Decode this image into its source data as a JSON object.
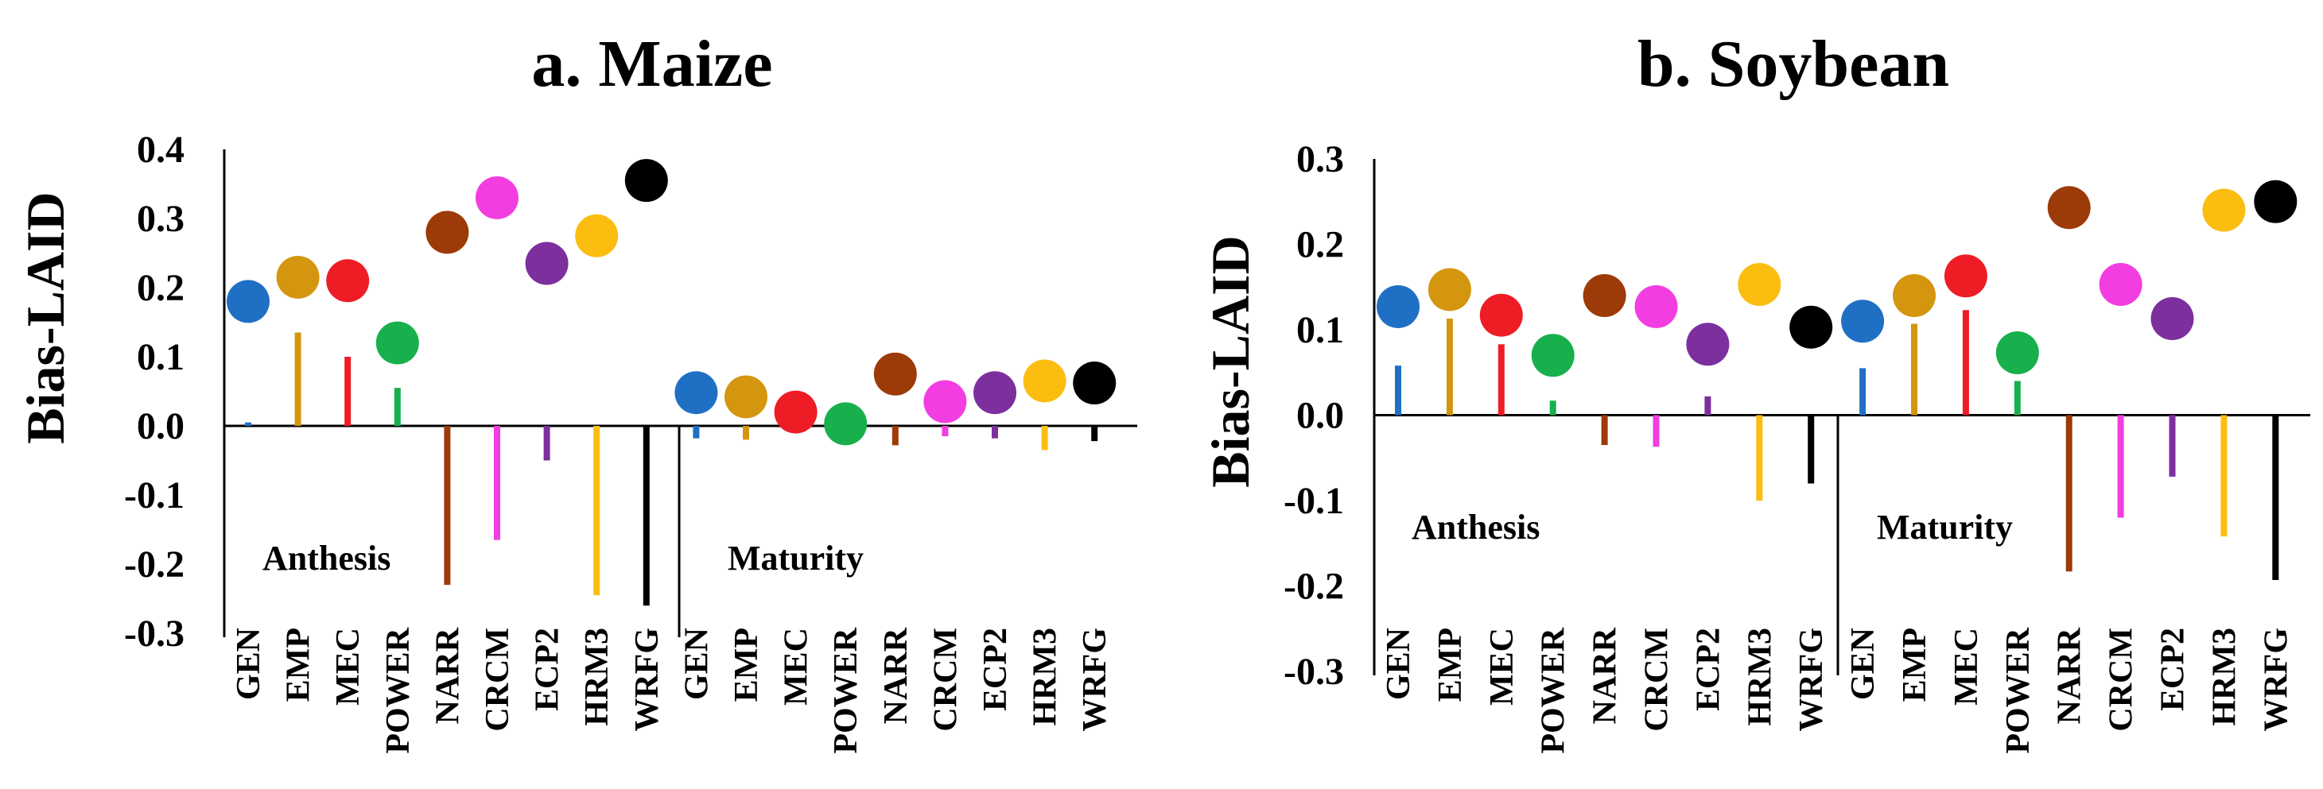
{
  "colors": {
    "GEN": "#1f6fc5",
    "EMP": "#d4960f",
    "MEC": "#ee1c25",
    "POWER": "#18b04c",
    "NARR": "#9c3a08",
    "CRCM": "#f23ee0",
    "ECP2": "#7d2f9e",
    "HRM3": "#fbbd10",
    "WRFG": "#000000"
  },
  "chart_data": [
    {
      "type": "scatter",
      "title": "a. Maize",
      "ylabel": "Bias-LAID",
      "xlabel": "",
      "ylim": [
        -0.3,
        0.4
      ],
      "ytick_labels": [
        "0.4",
        "0.3",
        "0.2",
        "0.1",
        "0.0",
        "-0.1",
        "-0.2",
        "-0.3"
      ],
      "categories": [
        "GEN",
        "EMP",
        "MEC",
        "POWER",
        "NARR",
        "CRCM",
        "ECP2",
        "HRM3",
        "WRFG"
      ],
      "groups": [
        {
          "label": "Anthesis",
          "dots": [
            0.18,
            0.215,
            0.21,
            0.12,
            0.28,
            0.33,
            0.235,
            0.275,
            0.355
          ],
          "bars": [
            0.005,
            0.135,
            0.1,
            0.055,
            -0.23,
            -0.165,
            -0.05,
            -0.245,
            -0.26
          ]
        },
        {
          "label": "Maturity",
          "dots": [
            0.048,
            0.042,
            0.02,
            0.003,
            0.075,
            0.035,
            0.048,
            0.065,
            0.062
          ],
          "bars": [
            -0.018,
            -0.02,
            -0.002,
            -0.002,
            -0.028,
            -0.015,
            -0.018,
            -0.035,
            -0.022
          ]
        }
      ]
    },
    {
      "type": "scatter",
      "title": "b. Soybean",
      "ylabel": "Bias-LAID",
      "xlabel": "",
      "ylim": [
        -0.3,
        0.3
      ],
      "ytick_labels": [
        "0.3",
        "0.2",
        "0.1",
        "0.0",
        "-0.1",
        "-0.2",
        "-0.3"
      ],
      "categories": [
        "GEN",
        "EMP",
        "MEC",
        "POWER",
        "NARR",
        "CRCM",
        "ECP2",
        "HRM3",
        "WRFG"
      ],
      "groups": [
        {
          "label": "Anthesis",
          "dots": [
            0.127,
            0.147,
            0.117,
            0.07,
            0.14,
            0.127,
            0.083,
            0.153,
            0.103
          ],
          "bars": [
            0.058,
            0.113,
            0.083,
            0.017,
            -0.035,
            -0.037,
            0.022,
            -0.1,
            -0.08
          ]
        },
        {
          "label": "Maturity",
          "dots": [
            0.11,
            0.14,
            0.163,
            0.073,
            0.243,
            0.153,
            0.113,
            0.24,
            0.25
          ],
          "bars": [
            0.055,
            0.107,
            0.123,
            0.04,
            -0.183,
            -0.12,
            -0.072,
            -0.142,
            -0.193
          ]
        }
      ]
    }
  ]
}
